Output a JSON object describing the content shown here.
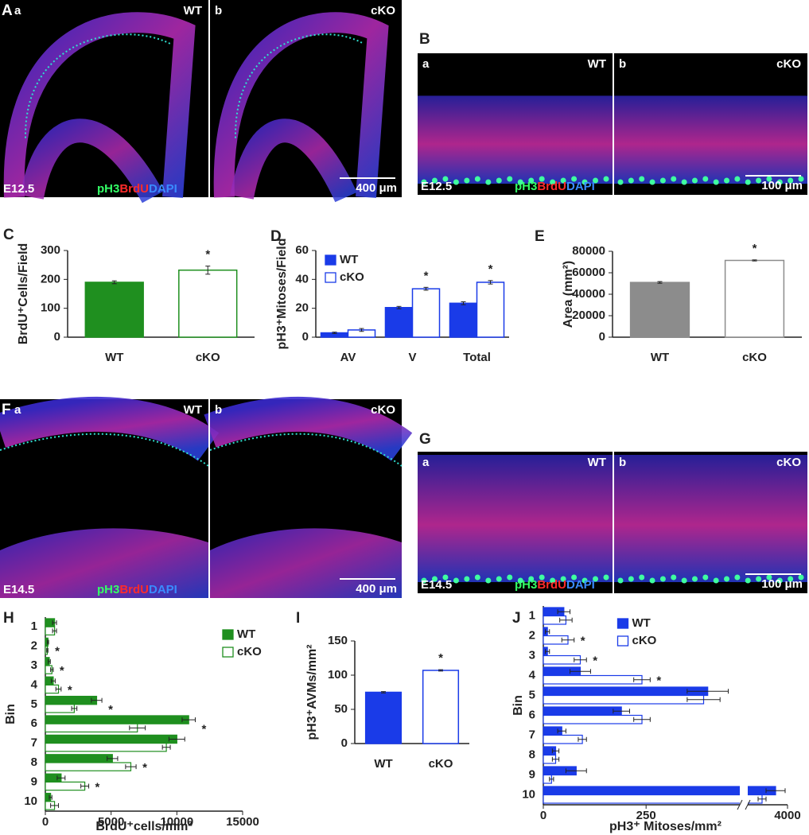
{
  "images": [
    {
      "label": "A",
      "sub": [
        {
          "letter": "a",
          "genotype": "WT"
        },
        {
          "letter": "b",
          "genotype": "cKO"
        }
      ],
      "stage": "E12.5",
      "stain": [
        {
          "text": "pH3",
          "color": "#33ff66"
        },
        {
          "text": "BrdU",
          "color": "#ff2b2b"
        },
        {
          "text": "DAPI",
          "color": "#3a8bff"
        }
      ],
      "scale": "400 μm"
    },
    {
      "label": "B",
      "sub": [
        {
          "letter": "a",
          "genotype": "WT"
        },
        {
          "letter": "b",
          "genotype": "cKO"
        }
      ],
      "stage": "E12.5",
      "stain": [
        {
          "text": "pH3",
          "color": "#33ff66"
        },
        {
          "text": "BrdU",
          "color": "#ff2b2b"
        },
        {
          "text": "DAPI",
          "color": "#3a8bff"
        }
      ],
      "scale": "100 μm"
    },
    {
      "label": "F",
      "sub": [
        {
          "letter": "a",
          "genotype": "WT"
        },
        {
          "letter": "b",
          "genotype": "cKO"
        }
      ],
      "stage": "E14.5",
      "stain": [
        {
          "text": "pH3",
          "color": "#33ff66"
        },
        {
          "text": "BrdU",
          "color": "#ff2b2b"
        },
        {
          "text": "DAPI",
          "color": "#3a8bff"
        }
      ],
      "scale": "400 μm"
    },
    {
      "label": "G",
      "sub": [
        {
          "letter": "a",
          "genotype": "WT"
        },
        {
          "letter": "b",
          "genotype": "cKO"
        }
      ],
      "stage": "E14.5",
      "stain": [
        {
          "text": "pH3",
          "color": "#33ff66"
        },
        {
          "text": "BrdU",
          "color": "#ff2b2b"
        },
        {
          "text": "DAPI",
          "color": "#3a8bff"
        }
      ],
      "scale": "100 μm"
    }
  ],
  "chart_data": [
    {
      "type": "bar",
      "label": "C",
      "ylabel": "BrdU⁺Cells/Field",
      "categories": [
        "WT",
        "cKO"
      ],
      "values": [
        190,
        232
      ],
      "errors": [
        5,
        14
      ],
      "fills": [
        "#1f8f1f",
        "#ffffff"
      ],
      "colors": [
        "#1f8f1f",
        "#1f8f1f"
      ],
      "significant": [
        false,
        true
      ],
      "significance_label": "*",
      "ylim": [
        0,
        300
      ],
      "yticks": [
        0,
        100,
        200,
        300
      ]
    },
    {
      "type": "bar",
      "label": "D",
      "ylabel": "pH3⁺Mitoses/Field",
      "categories": [
        "AV",
        "V",
        "Total"
      ],
      "series": [
        {
          "name": "WT",
          "color": "#1a3be8",
          "fill": "#1a3be8",
          "values": [
            3,
            20.5,
            23.5
          ],
          "errors": [
            0.5,
            0.8,
            1
          ]
        },
        {
          "name": "cKO",
          "color": "#1a3be8",
          "fill": "#ffffff",
          "values": [
            5,
            33.5,
            38
          ],
          "errors": [
            1,
            1,
            1.2
          ],
          "significant": [
            false,
            true,
            true
          ]
        }
      ],
      "significance_label": "*",
      "legend": "upper left",
      "ylim": [
        0,
        60
      ],
      "yticks": [
        0,
        20,
        40,
        60
      ]
    },
    {
      "type": "bar",
      "label": "E",
      "ylabel": "Area (mm²)",
      "categories": [
        "WT",
        "cKO"
      ],
      "values": [
        51000,
        71500
      ],
      "errors": [
        800,
        500
      ],
      "fills": [
        "#8c8c8c",
        "#ffffff"
      ],
      "colors": [
        "#8c8c8c",
        "#8c8c8c"
      ],
      "significant": [
        false,
        true
      ],
      "significance_label": "*",
      "ylim": [
        0,
        80000
      ],
      "yticks": [
        0,
        20000,
        40000,
        60000,
        80000
      ]
    },
    {
      "type": "bar",
      "orientation": "horizontal",
      "label": "H",
      "ylabel": "Bin",
      "xlabel": "BrdU⁺cells/mm²",
      "categories": [
        "1",
        "2",
        "3",
        "4",
        "5",
        "6",
        "7",
        "8",
        "9",
        "10"
      ],
      "series": [
        {
          "name": "WT",
          "color": "#1f8f1f",
          "fill": "#1f8f1f",
          "values": [
            700,
            200,
            300,
            600,
            3900,
            10900,
            10000,
            5100,
            1200,
            400
          ],
          "errors": [
            150,
            50,
            80,
            150,
            400,
            500,
            600,
            400,
            300,
            100
          ]
        },
        {
          "name": "cKO",
          "color": "#1f8f1f",
          "fill": "#ffffff",
          "values": [
            700,
            150,
            500,
            1000,
            2200,
            7000,
            9200,
            6500,
            3000,
            700
          ],
          "errors": [
            150,
            50,
            100,
            200,
            200,
            600,
            300,
            400,
            300,
            300
          ],
          "significant": [
            false,
            true,
            true,
            true,
            true,
            true,
            false,
            true,
            true,
            false
          ]
        }
      ],
      "significance_label": "*",
      "legend": "upper right",
      "xlim": [
        0,
        15000
      ],
      "xticks": [
        0,
        5000,
        10000,
        15000
      ]
    },
    {
      "type": "bar",
      "label": "I",
      "ylabel": "pH3⁺AVMs/mm²",
      "categories": [
        "WT",
        "cKO"
      ],
      "values": [
        75,
        107
      ],
      "errors": [
        1,
        1
      ],
      "fills": [
        "#1a3be8",
        "#ffffff"
      ],
      "colors": [
        "#1a3be8",
        "#1a3be8"
      ],
      "significant": [
        false,
        true
      ],
      "significance_label": "*",
      "ylim": [
        0,
        150
      ],
      "yticks": [
        0,
        50,
        100,
        150
      ]
    },
    {
      "type": "bar",
      "orientation": "horizontal",
      "label": "J",
      "ylabel": "Bin",
      "xlabel": "pH3⁺ Mitoses/mm²",
      "categories": [
        "1",
        "2",
        "3",
        "4",
        "5",
        "6",
        "7",
        "8",
        "9",
        "10"
      ],
      "series": [
        {
          "name": "WT",
          "color": "#1a3be8",
          "fill": "#1a3be8",
          "values": [
            50,
            10,
            10,
            90,
            400,
            190,
            45,
            30,
            80,
            3850
          ],
          "errors": [
            15,
            5,
            5,
            25,
            50,
            20,
            10,
            8,
            25,
            120
          ]
        },
        {
          "name": "cKO",
          "color": "#1a3be8",
          "fill": "#ffffff",
          "values": [
            55,
            60,
            90,
            240,
            390,
            240,
            95,
            30,
            20,
            3680
          ],
          "errors": [
            15,
            15,
            15,
            20,
            40,
            20,
            10,
            8,
            5,
            50
          ],
          "significant": [
            false,
            true,
            true,
            true,
            false,
            false,
            false,
            false,
            false,
            false
          ]
        }
      ],
      "significance_label": "*",
      "legend": "upper center",
      "xlim": [
        0,
        4000
      ],
      "xbreak": [
        478,
        3500
      ],
      "xticks": [
        0,
        250,
        4000
      ]
    }
  ]
}
